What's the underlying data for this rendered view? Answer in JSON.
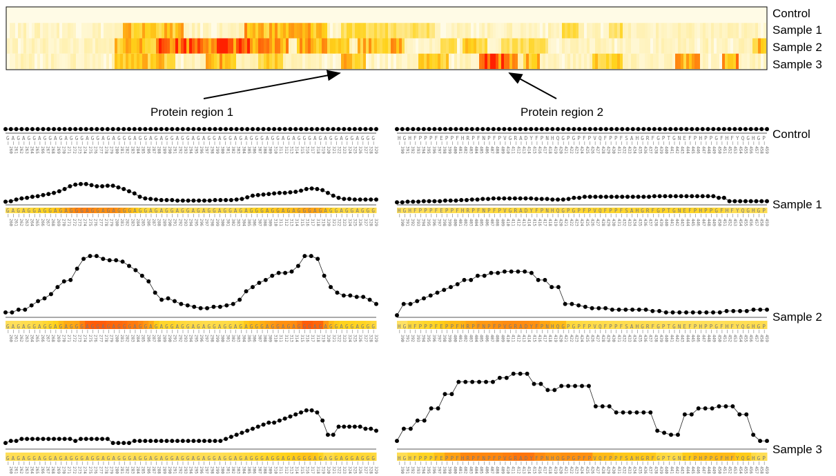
{
  "chart_data": [
    {
      "type": "heatmap",
      "rows": [
        "Control",
        "Sample 1",
        "Sample 2",
        "Sample 3"
      ],
      "annotations": [
        "Protein region 1",
        "Protein region 2"
      ],
      "colors": {
        "low": "#fffbe6",
        "mid": "#ffd21a",
        "high": "#ff2000"
      },
      "segments": {
        "Sample 1": [
          [
            0.15,
            0.23,
            0.5
          ],
          [
            0.31,
            0.42,
            0.55
          ],
          [
            0.44,
            0.56,
            0.35
          ],
          [
            0.73,
            0.75,
            0.4
          ],
          [
            0.79,
            0.81,
            0.35
          ]
        ],
        "Sample 2": [
          [
            0.14,
            0.21,
            0.55
          ],
          [
            0.2,
            0.32,
            0.85
          ],
          [
            0.32,
            0.37,
            0.6
          ],
          [
            0.38,
            0.45,
            0.6
          ],
          [
            0.46,
            0.52,
            0.55
          ],
          [
            0.57,
            0.59,
            0.35
          ],
          [
            0.6,
            0.63,
            0.45
          ],
          [
            0.65,
            0.71,
            0.35
          ],
          [
            0.98,
            1.0,
            0.5
          ]
        ],
        "Sample 3": [
          [
            0.14,
            0.22,
            0.5
          ],
          [
            0.26,
            0.3,
            0.55
          ],
          [
            0.33,
            0.36,
            0.45
          ],
          [
            0.44,
            0.47,
            0.5
          ],
          [
            0.54,
            0.58,
            0.5
          ],
          [
            0.62,
            0.67,
            0.85
          ],
          [
            0.68,
            0.7,
            0.55
          ],
          [
            0.77,
            0.81,
            0.45
          ],
          [
            0.88,
            0.91,
            0.55
          ],
          [
            0.94,
            0.96,
            0.6
          ]
        ]
      }
    },
    {
      "type": "line",
      "panel": "region-1",
      "rows": [
        "Control",
        "Sample 1",
        "Sample 2",
        "Sample 3"
      ],
      "x_start": 260,
      "x_end": 330,
      "sequence": "GAGAGGAGGAGAGGGAGGAGAGGGAGGAGAGGAGGAGAGGAGGAGAGGGAGGAGAGGGAGAGGAGGAGGG",
      "series": [
        {
          "name": "Control",
          "values": [
            5,
            5,
            5,
            5,
            5,
            5,
            5,
            5,
            5,
            5,
            5,
            5,
            5,
            5,
            5,
            5,
            5,
            5,
            5,
            5,
            5,
            5,
            5,
            5,
            5,
            5,
            5,
            5,
            5,
            5,
            5,
            5,
            5,
            5,
            5,
            5,
            5,
            5,
            5,
            5,
            5,
            5,
            5,
            5,
            5,
            5,
            5,
            5,
            5,
            5,
            5,
            5,
            5,
            5,
            5,
            5,
            5,
            5,
            5,
            5,
            5,
            5,
            5,
            5,
            5,
            5,
            5,
            5,
            5,
            5
          ]
        },
        {
          "name": "Sample 1",
          "values": [
            2,
            3,
            6,
            8,
            9,
            11,
            12,
            14,
            16,
            18,
            21,
            25,
            30,
            33,
            34,
            34,
            32,
            30,
            30,
            31,
            31,
            28,
            25,
            21,
            17,
            11,
            8,
            7,
            6,
            5,
            5,
            5,
            4,
            4,
            4,
            4,
            4,
            4,
            4,
            5,
            5,
            5,
            5,
            6,
            7,
            10,
            13,
            14,
            15,
            16,
            17,
            18,
            18,
            19,
            20,
            22,
            25,
            26,
            25,
            23,
            18,
            13,
            9,
            7,
            7,
            6,
            6,
            6,
            6,
            6
          ]
        },
        {
          "name": "Sample 2",
          "values": [
            2,
            2,
            4,
            4,
            7,
            10,
            12,
            15,
            20,
            24,
            25,
            33,
            40,
            42,
            42,
            40,
            39,
            39,
            38,
            35,
            32,
            28,
            24,
            16,
            11,
            12,
            10,
            8,
            7,
            6,
            5,
            5,
            6,
            6,
            7,
            8,
            11,
            17,
            20,
            23,
            25,
            28,
            30,
            30,
            31,
            35,
            42,
            42,
            40,
            28,
            20,
            16,
            14,
            14,
            13,
            13,
            11,
            8
          ]
        },
        {
          "name": "Sample 3",
          "values": [
            2,
            3,
            3,
            4,
            4,
            4,
            4,
            4,
            4,
            4,
            4,
            4,
            4,
            3,
            4,
            4,
            4,
            4,
            4,
            4,
            2,
            2,
            2,
            2,
            3,
            3,
            3,
            3,
            3,
            3,
            3,
            3,
            3,
            3,
            3,
            3,
            3,
            3,
            3,
            3,
            3,
            4,
            5,
            6,
            7,
            8,
            9,
            10,
            11,
            12,
            12,
            13,
            14,
            15,
            16,
            17,
            18,
            18,
            17,
            13,
            6,
            6,
            10,
            10,
            10,
            10,
            10,
            9,
            9,
            8
          ]
        }
      ]
    },
    {
      "type": "line",
      "panel": "region-2",
      "rows": [
        "Control",
        "Sample 1",
        "Sample 2",
        "Sample 3"
      ],
      "x_start": 390,
      "x_end": 460,
      "sequence": "HGHFPPPFEPPFHRPFNPFPVGRADYFPNHQGPGPFPVQFPPFSAHGRFGPTGNEFPHPPGFHFYQGHGPRK",
      "series": [
        {
          "name": "Control",
          "values": [
            5,
            5,
            5,
            5,
            5,
            5,
            5,
            5,
            5,
            5,
            5,
            5,
            5,
            5,
            5,
            5,
            5,
            5,
            5,
            5,
            5,
            5,
            5,
            5,
            5,
            5,
            5,
            5,
            5,
            5,
            5,
            5,
            5,
            5,
            5,
            5,
            5,
            5,
            5,
            5,
            5,
            5,
            5,
            5,
            5,
            5,
            5,
            5,
            5,
            5,
            5,
            5,
            5,
            5,
            5,
            5,
            5,
            5,
            5,
            5,
            5,
            5,
            5,
            5,
            5,
            5,
            5,
            5,
            5,
            5
          ]
        },
        {
          "name": "Sample 1",
          "values": [
            1,
            1,
            2,
            2,
            2,
            3,
            3,
            3,
            3,
            4,
            4,
            4,
            5,
            5,
            6,
            6,
            7,
            7,
            8,
            8,
            8,
            8,
            8,
            8,
            8,
            8,
            7,
            7,
            7,
            6,
            6,
            6,
            7,
            9,
            9,
            11,
            11,
            11,
            11,
            11,
            11,
            11,
            11,
            11,
            11,
            11,
            11,
            11,
            12,
            12,
            12,
            12,
            12,
            12,
            12,
            12,
            12,
            12,
            12,
            12,
            9,
            9,
            3,
            3,
            3,
            3,
            3,
            3,
            3,
            3
          ]
        },
        {
          "name": "Sample 2",
          "values": [
            0,
            8,
            8,
            10,
            12,
            14,
            16,
            18,
            20,
            22,
            25,
            25,
            28,
            28,
            30,
            30,
            31,
            31,
            31,
            31,
            30,
            25,
            25,
            20,
            20,
            8,
            8,
            7,
            6,
            5,
            5,
            5,
            4,
            4,
            4,
            4,
            4,
            4,
            3,
            3,
            2,
            2,
            2,
            2,
            2,
            2,
            2,
            2,
            2,
            3,
            3,
            3,
            3,
            4,
            4,
            4
          ]
        },
        {
          "name": "Sample 3",
          "values": [
            3,
            9,
            9,
            13,
            13,
            19,
            19,
            26,
            26,
            32,
            32,
            32,
            32,
            32,
            32,
            34,
            34,
            36,
            36,
            36,
            31,
            31,
            28,
            28,
            30,
            30,
            30,
            30,
            30,
            20,
            20,
            20,
            17,
            17,
            17,
            17,
            17,
            17,
            8,
            7,
            6,
            6,
            16,
            16,
            19,
            19,
            19,
            20,
            20,
            20,
            16,
            16,
            6,
            3,
            3
          ]
        }
      ]
    }
  ]
}
